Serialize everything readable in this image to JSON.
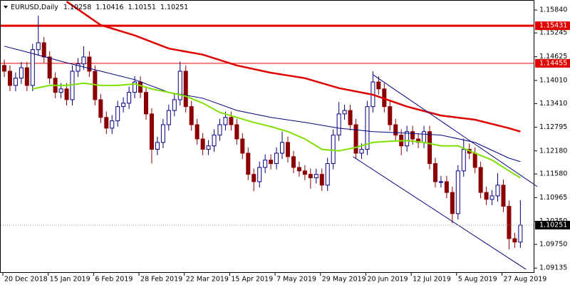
{
  "chart_data": {
    "type": "candlestick",
    "title": "EURUSD,Daily",
    "header_values": [
      1.10258,
      1.10416,
      1.10151,
      1.10251
    ],
    "categories": [
      "20 Dec 2018",
      null,
      null,
      null,
      null,
      null,
      null,
      null,
      "15 Jan 2019",
      null,
      null,
      null,
      null,
      null,
      null,
      null,
      "6 Feb 2019",
      null,
      null,
      null,
      null,
      null,
      null,
      null,
      "28 Feb 2019",
      null,
      null,
      null,
      null,
      null,
      null,
      null,
      "22 Mar 2019",
      null,
      null,
      null,
      null,
      null,
      null,
      null,
      "15 Apr 2019",
      null,
      null,
      null,
      null,
      null,
      null,
      null,
      "7 May 2019",
      null,
      null,
      null,
      null,
      null,
      null,
      null,
      "29 May 2019",
      null,
      null,
      null,
      null,
      null,
      null,
      null,
      "20 Jun 2019",
      null,
      null,
      null,
      null,
      null,
      null,
      null,
      "12 Jul 2019",
      null,
      null,
      null,
      null,
      null,
      null,
      null,
      "5 Aug 2019",
      null,
      null,
      null,
      null,
      null,
      null,
      null,
      "27 Aug 2019",
      null,
      null,
      null
    ],
    "open": [
      1.144,
      1.1425,
      1.1388,
      1.1407,
      1.1434,
      1.1388,
      1.1481,
      1.1499,
      1.1462,
      1.1407,
      1.137,
      1.1379,
      1.1351,
      1.1425,
      1.1444,
      1.1462,
      1.1425,
      1.1351,
      1.1305,
      1.1277,
      1.1296,
      1.1333,
      1.1342,
      1.137,
      1.1397,
      1.137,
      1.1314,
      1.1222,
      1.124,
      1.1286,
      1.1323,
      1.1351,
      1.1425,
      1.1333,
      1.1286,
      1.1249,
      1.1222,
      1.1231,
      1.1259,
      1.1286,
      1.1305,
      1.1286,
      1.1249,
      1.1212,
      1.1157,
      1.1138,
      1.1175,
      1.1194,
      1.1185,
      1.1212,
      1.124,
      1.1203,
      1.1175,
      1.1166,
      1.1157,
      1.1148,
      1.1157,
      1.1129,
      1.1185,
      1.1259,
      1.1314,
      1.1323,
      1.1286,
      1.1212,
      1.1222,
      1.1333,
      1.1397,
      1.1379,
      1.1333,
      1.1286,
      1.1259,
      1.1231,
      1.1268,
      1.1249,
      1.124,
      1.1268,
      1.1185,
      1.1138,
      1.1138,
      1.111,
      1.1055,
      1.1166,
      1.1222,
      1.1212,
      1.1175,
      1.111,
      1.1092,
      1.1101,
      1.1129,
      1.1074,
      1.099,
      1.0981
    ],
    "high": [
      1.1455,
      1.144,
      1.1422,
      1.1449,
      1.1449,
      1.1496,
      1.1569,
      1.1514,
      1.1477,
      1.1422,
      1.1394,
      1.1394,
      1.144,
      1.1459,
      1.149,
      1.1477,
      1.144,
      1.1366,
      1.132,
      1.1311,
      1.1348,
      1.1357,
      1.1385,
      1.1412,
      1.1412,
      1.1385,
      1.1329,
      1.1255,
      1.1301,
      1.1338,
      1.1366,
      1.145,
      1.144,
      1.1348,
      1.1301,
      1.1264,
      1.1246,
      1.1274,
      1.1301,
      1.132,
      1.132,
      1.1301,
      1.1264,
      1.1227,
      1.1172,
      1.119,
      1.1209,
      1.1209,
      1.1227,
      1.1268,
      1.1255,
      1.1218,
      1.119,
      1.1181,
      1.1172,
      1.1172,
      1.1172,
      1.12,
      1.1274,
      1.1345,
      1.1338,
      1.1338,
      1.1301,
      1.1237,
      1.1348,
      1.1425,
      1.1412,
      1.1394,
      1.1348,
      1.1301,
      1.1274,
      1.1283,
      1.1283,
      1.1264,
      1.1283,
      1.1283,
      1.12,
      1.1153,
      1.1153,
      1.1125,
      1.1181,
      1.125,
      1.1237,
      1.1227,
      1.119,
      1.1125,
      1.1116,
      1.116,
      1.1144,
      1.1089,
      1.1005,
      1.109
    ],
    "low": [
      1.141,
      1.1373,
      1.1373,
      1.1392,
      1.1373,
      1.1373,
      1.1466,
      1.1447,
      1.1392,
      1.1355,
      1.1355,
      1.1336,
      1.1336,
      1.141,
      1.1429,
      1.141,
      1.1336,
      1.129,
      1.1262,
      1.1262,
      1.1281,
      1.1318,
      1.1327,
      1.1355,
      1.1355,
      1.1299,
      1.1185,
      1.1207,
      1.1225,
      1.1271,
      1.1308,
      1.1336,
      1.1318,
      1.1271,
      1.1234,
      1.1207,
      1.1207,
      1.1216,
      1.1244,
      1.1271,
      1.1271,
      1.1234,
      1.1197,
      1.1142,
      1.1113,
      1.1123,
      1.116,
      1.117,
      1.117,
      1.1197,
      1.1188,
      1.116,
      1.1151,
      1.1142,
      1.112,
      1.1133,
      1.1114,
      1.1114,
      1.117,
      1.1244,
      1.1299,
      1.1271,
      1.1197,
      1.1197,
      1.1207,
      1.1318,
      1.1364,
      1.1318,
      1.1271,
      1.1244,
      1.1207,
      1.1216,
      1.1234,
      1.1225,
      1.1225,
      1.117,
      1.1123,
      1.1123,
      1.1095,
      1.103,
      1.104,
      1.1151,
      1.1197,
      1.116,
      1.1095,
      1.1077,
      1.1077,
      1.1086,
      1.1059,
      1.0962,
      1.0966,
      1.0966
    ],
    "close": [
      1.1425,
      1.1388,
      1.1407,
      1.1434,
      1.1388,
      1.1481,
      1.1499,
      1.1462,
      1.1407,
      1.137,
      1.1379,
      1.1351,
      1.1425,
      1.1444,
      1.1462,
      1.1425,
      1.1351,
      1.1305,
      1.1277,
      1.1296,
      1.1333,
      1.1342,
      1.137,
      1.1397,
      1.137,
      1.1314,
      1.1222,
      1.124,
      1.1286,
      1.1323,
      1.1351,
      1.1425,
      1.1333,
      1.1286,
      1.1249,
      1.1222,
      1.1231,
      1.1259,
      1.1286,
      1.1305,
      1.1286,
      1.1249,
      1.1212,
      1.1157,
      1.1138,
      1.1175,
      1.1194,
      1.1185,
      1.1212,
      1.124,
      1.1203,
      1.1175,
      1.1166,
      1.1157,
      1.1148,
      1.1157,
      1.1129,
      1.1185,
      1.1259,
      1.1314,
      1.1323,
      1.1286,
      1.1212,
      1.1222,
      1.1333,
      1.1397,
      1.1379,
      1.1333,
      1.1286,
      1.1259,
      1.1231,
      1.1268,
      1.1249,
      1.124,
      1.1268,
      1.1185,
      1.1138,
      1.1138,
      1.111,
      1.1055,
      1.1166,
      1.1222,
      1.1212,
      1.1175,
      1.111,
      1.1092,
      1.1101,
      1.1129,
      1.1074,
      1.099,
      1.0981,
      1.1025
    ],
    "up_color": "#000080",
    "down_color": "#8b0000",
    "moving_averages": [
      {
        "color": "#e00000",
        "width": 2.5,
        "x": [
          11,
          17,
          23,
          29,
          35,
          41,
          47,
          53,
          59,
          65,
          71,
          77,
          83,
          89,
          91
        ],
        "values": [
          1.1606,
          1.1545,
          1.1518,
          1.1484,
          1.1468,
          1.144,
          1.1421,
          1.1407,
          1.1381,
          1.1364,
          1.1333,
          1.131,
          1.1299,
          1.1277,
          1.1268
        ]
      },
      {
        "color": "#000080",
        "width": 1,
        "x": [
          0,
          5,
          11,
          17,
          23,
          29,
          35,
          41,
          47,
          53,
          59,
          65,
          71,
          77,
          83,
          89,
          91
        ],
        "values": [
          1.149,
          1.1471,
          1.1447,
          1.1425,
          1.1403,
          1.137,
          1.1355,
          1.1323,
          1.1305,
          1.1292,
          1.1277,
          1.1268,
          1.1264,
          1.1259,
          1.124,
          1.1199,
          1.119
        ]
      },
      {
        "color": "#7fe000",
        "width": 2,
        "x": [
          5,
          8,
          11,
          14,
          17,
          20,
          23,
          26,
          29,
          32,
          35,
          38,
          41,
          44,
          47,
          50,
          53,
          56,
          59,
          62,
          65,
          68,
          71,
          74,
          77,
          80,
          83,
          86,
          89,
          91
        ],
        "values": [
          1.1379,
          1.1388,
          1.1388,
          1.1394,
          1.1388,
          1.1388,
          1.1392,
          1.1379,
          1.137,
          1.136,
          1.1342,
          1.1318,
          1.1305,
          1.1292,
          1.1281,
          1.1268,
          1.1249,
          1.1222,
          1.1218,
          1.1227,
          1.124,
          1.1243,
          1.1245,
          1.124,
          1.1231,
          1.1231,
          1.1212,
          1.1194,
          1.1166,
          1.1148
        ]
      }
    ],
    "channel_lines": [
      {
        "color": "#000080",
        "x": [
          61.5,
          92
        ],
        "values": [
          1.1203,
          1.091
        ]
      },
      {
        "color": "#000080",
        "x": [
          65,
          94
        ],
        "values": [
          1.1416,
          1.1125
        ]
      }
    ],
    "levels": [
      {
        "value": 1.15431,
        "color": "#e00000",
        "width": 3
      },
      {
        "value": 1.14455,
        "color": "#e00000",
        "width": 1
      }
    ],
    "last_price": 1.10251,
    "ylim": [
      1.0901,
      1.161
    ],
    "yticks": [
      {
        "value": 1.1584,
        "label": "1.15840"
      },
      1.15245,
      1.14625,
      {
        "value": 1.1401,
        "label": "1.14010"
      },
      {
        "value": 1.1341,
        "label": "1.13410"
      },
      1.12795,
      {
        "value": 1.1218,
        "label": "1.12180"
      },
      {
        "value": 1.1158,
        "label": "1.11580"
      },
      1.10965,
      {
        "value": 1.1035,
        "label": "1.10350"
      },
      {
        "value": 1.0975,
        "label": "1.09750"
      },
      1.09135
    ]
  }
}
